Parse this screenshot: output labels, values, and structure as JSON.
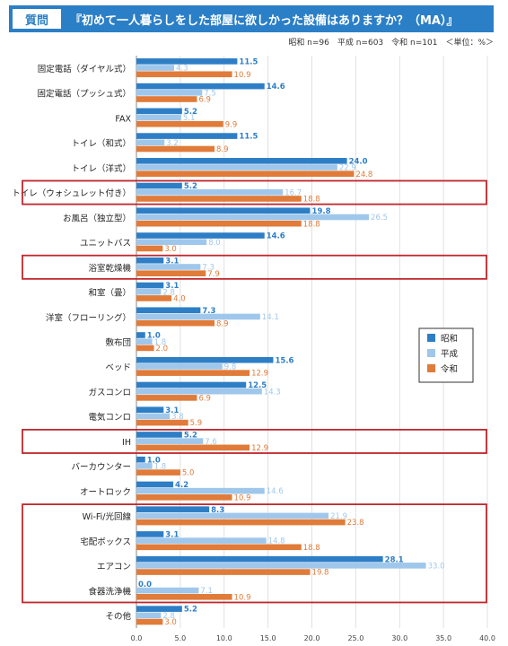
{
  "header": {
    "tag": "質問",
    "title": "『初めて一人暮らしをした部屋に欲しかった設備はありますか？（MA）』"
  },
  "meta": {
    "label": "昭和 n=96　平成 n=603　令和 n=101　＜単位：%＞"
  },
  "colors": {
    "header": "#2b7fc6",
    "showa": "#2e7ec6",
    "heisei": "#9fc7eb",
    "reiwa": "#e07b39",
    "highlight": "#c0272d"
  },
  "chart_data": {
    "type": "bar",
    "orientation": "horizontal",
    "title": "『初めて一人暮らしをした部屋に欲しかった設備はありますか？（MA）』",
    "xlim": [
      0,
      40
    ],
    "xticks": [
      "0.0",
      "5.0",
      "10.0",
      "15.0",
      "20.0",
      "25.0",
      "30.0",
      "35.0",
      "40.0"
    ],
    "legend_position": "right",
    "categories": [
      "固定電話（ダイヤル式）",
      "固定電話（プッシュ式）",
      "FAX",
      "トイレ（和式）",
      "トイレ（洋式）",
      "トイレ（ウォシュレット付き）",
      "お風呂（独立型）",
      "ユニットバス",
      "浴室乾燥機",
      "和室（畳）",
      "洋室（フローリング）",
      "敷布団",
      "ベッド",
      "ガスコンロ",
      "電気コンロ",
      "IH",
      "バーカウンター",
      "オートロック",
      "Wi-Fi/光回線",
      "宅配ボックス",
      "エアコン",
      "食器洗浄機",
      "その他"
    ],
    "series": [
      {
        "name": "昭和",
        "values": [
          11.5,
          14.6,
          5.2,
          11.5,
          24.0,
          5.2,
          19.8,
          14.6,
          3.1,
          3.1,
          7.3,
          1.0,
          15.6,
          12.5,
          3.1,
          5.2,
          1.0,
          4.2,
          8.3,
          3.1,
          28.1,
          0.0,
          5.2
        ]
      },
      {
        "name": "平成",
        "values": [
          4.3,
          7.5,
          5.1,
          3.2,
          22.9,
          16.7,
          26.5,
          8.0,
          7.3,
          2.8,
          14.1,
          1.8,
          9.8,
          14.3,
          3.8,
          7.6,
          1.8,
          14.6,
          21.9,
          14.8,
          33.0,
          7.1,
          2.8
        ]
      },
      {
        "name": "令和",
        "values": [
          10.9,
          6.9,
          9.9,
          8.9,
          24.8,
          18.8,
          18.8,
          3.0,
          7.9,
          4.0,
          8.9,
          2.0,
          12.9,
          6.9,
          5.9,
          12.9,
          5.0,
          10.9,
          23.8,
          18.8,
          19.8,
          10.9,
          3.0
        ]
      }
    ],
    "highlighted_categories": [
      "トイレ（ウォシュレット付き）",
      "浴室乾燥機",
      "IH",
      "Wi-Fi/光回線",
      "宅配ボックス",
      "エアコン",
      "食器洗浄機"
    ]
  }
}
